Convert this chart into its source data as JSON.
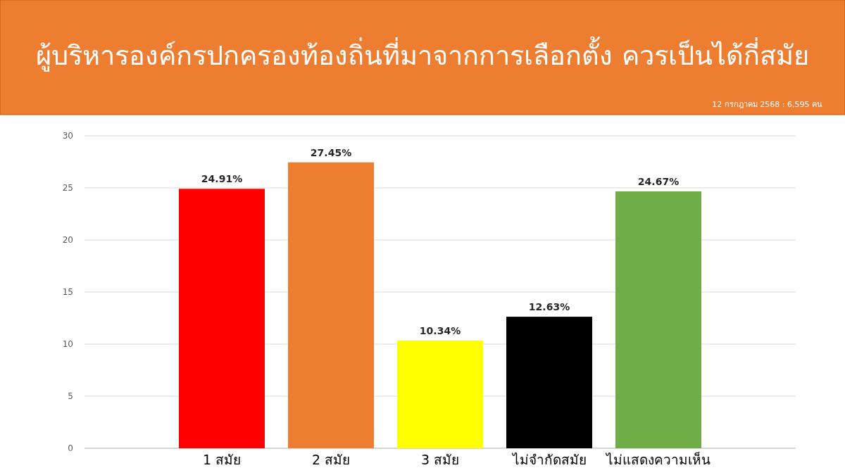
{
  "chart_data": {
    "type": "bar",
    "title": "ผู้บริหารองค์กรปกครองท้องถิ่นที่มาจากการเลือกตั้ง ควรเป็นได้กี่สมัย",
    "annotations": [
      "12 กรกฎาคม 2568 : 6,595 คน"
    ],
    "categories": [
      "1 สมัย",
      "2 สมัย",
      "3 สมัย",
      "ไม่จำกัดสมัย",
      "ไม่แสดงความเห็น"
    ],
    "values": [
      24.91,
      27.45,
      10.34,
      12.63,
      24.67
    ],
    "colors": [
      "#ff0000",
      "#ed7d31",
      "#ffff00",
      "#000000",
      "#70ad47"
    ],
    "value_labels": [
      "24.91%",
      "27.45%",
      "10.34%",
      "12.63%",
      "24.67%"
    ],
    "ylim": [
      0,
      30
    ],
    "yticks": [
      0,
      5,
      10,
      15,
      20,
      25,
      30
    ],
    "grid": "y"
  }
}
